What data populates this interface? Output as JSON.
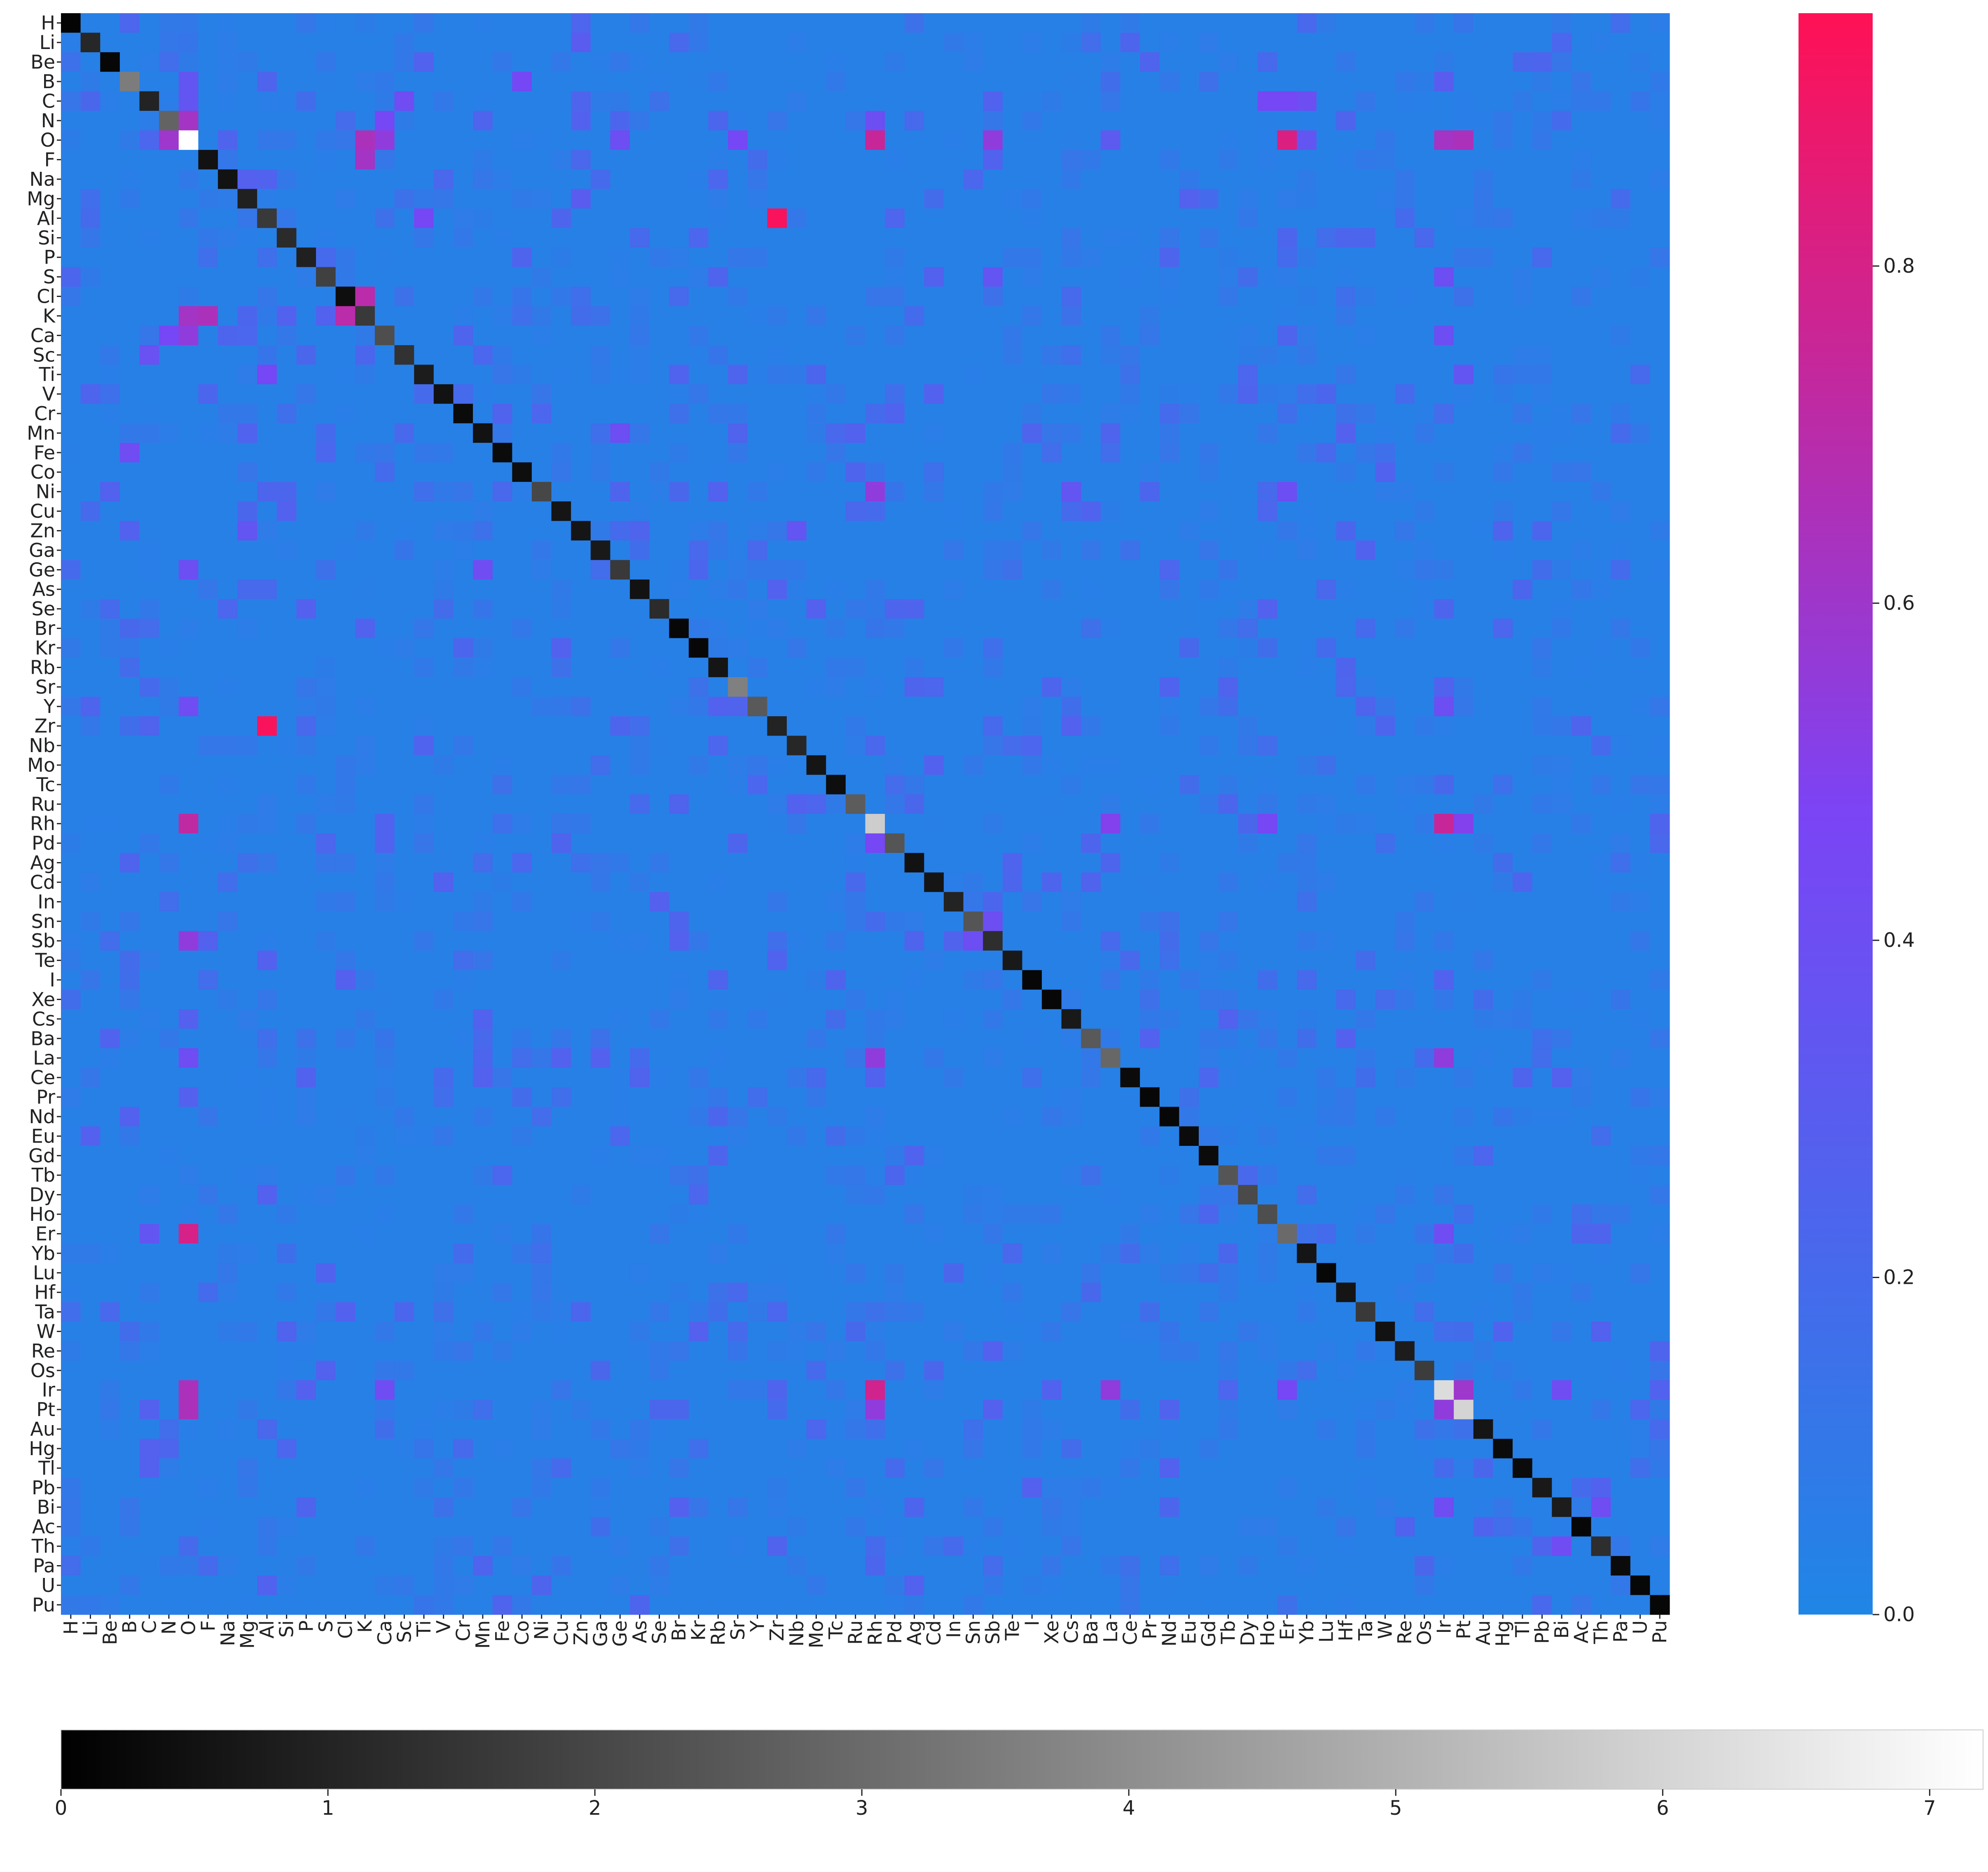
{
  "chart_data": {
    "type": "heatmap",
    "elements": [
      "H",
      "Li",
      "Be",
      "B",
      "C",
      "N",
      "O",
      "F",
      "Na",
      "Mg",
      "Al",
      "Si",
      "P",
      "S",
      "Cl",
      "K",
      "Ca",
      "Sc",
      "Ti",
      "V",
      "Cr",
      "Mn",
      "Fe",
      "Co",
      "Ni",
      "Cu",
      "Zn",
      "Ga",
      "Ge",
      "As",
      "Se",
      "Br",
      "Kr",
      "Rb",
      "Sr",
      "Y",
      "Zr",
      "Nb",
      "Mo",
      "Tc",
      "Ru",
      "Rh",
      "Pd",
      "Ag",
      "Cd",
      "In",
      "Sn",
      "Sb",
      "Te",
      "I",
      "Xe",
      "Cs",
      "Ba",
      "La",
      "Ce",
      "Pr",
      "Nd",
      "Eu",
      "Gd",
      "Tb",
      "Dy",
      "Ho",
      "Er",
      "Yb",
      "Lu",
      "Hf",
      "Ta",
      "W",
      "Re",
      "Os",
      "Ir",
      "Pt",
      "Au",
      "Hg",
      "Tl",
      "Pb",
      "Bi",
      "Ac",
      "Th",
      "Pa",
      "U",
      "Pu"
    ],
    "background_value": 0.04,
    "diagonal_value_scale": "grayscale",
    "diagonal": [
      {
        "el": "H",
        "v": 0.1
      },
      {
        "el": "Li",
        "v": 1.1
      },
      {
        "el": "Be",
        "v": 0.2
      },
      {
        "el": "B",
        "v": 3.5
      },
      {
        "el": "C",
        "v": 1.0
      },
      {
        "el": "N",
        "v": 2.8
      },
      {
        "el": "O",
        "v": 7.2
      },
      {
        "el": "F",
        "v": 0.5
      },
      {
        "el": "Na",
        "v": 0.5
      },
      {
        "el": "Mg",
        "v": 0.9
      },
      {
        "el": "Al",
        "v": 1.6
      },
      {
        "el": "Si",
        "v": 1.2
      },
      {
        "el": "P",
        "v": 0.9
      },
      {
        "el": "S",
        "v": 1.8
      },
      {
        "el": "Cl",
        "v": 0.4
      },
      {
        "el": "K",
        "v": 1.6
      },
      {
        "el": "Ca",
        "v": 2.2
      },
      {
        "el": "Sc",
        "v": 1.4
      },
      {
        "el": "Ti",
        "v": 0.8
      },
      {
        "el": "V",
        "v": 0.5
      },
      {
        "el": "Cr",
        "v": 0.3
      },
      {
        "el": "Mn",
        "v": 0.5
      },
      {
        "el": "Fe",
        "v": 0.3
      },
      {
        "el": "Co",
        "v": 0.4
      },
      {
        "el": "Ni",
        "v": 2.0
      },
      {
        "el": "Cu",
        "v": 0.6
      },
      {
        "el": "Zn",
        "v": 0.6
      },
      {
        "el": "Ga",
        "v": 0.7
      },
      {
        "el": "Ge",
        "v": 1.6
      },
      {
        "el": "As",
        "v": 0.5
      },
      {
        "el": "Se",
        "v": 1.2
      },
      {
        "el": "Br",
        "v": 0.2
      },
      {
        "el": "Kr",
        "v": 0.2
      },
      {
        "el": "Rb",
        "v": 0.6
      },
      {
        "el": "Sr",
        "v": 3.6
      },
      {
        "el": "Y",
        "v": 2.5
      },
      {
        "el": "Zr",
        "v": 1.0
      },
      {
        "el": "Nb",
        "v": 1.1
      },
      {
        "el": "Mo",
        "v": 0.6
      },
      {
        "el": "Tc",
        "v": 0.4
      },
      {
        "el": "Ru",
        "v": 2.6
      },
      {
        "el": "Rh",
        "v": 5.8
      },
      {
        "el": "Pd",
        "v": 2.4
      },
      {
        "el": "Ag",
        "v": 0.5
      },
      {
        "el": "Cd",
        "v": 0.6
      },
      {
        "el": "In",
        "v": 1.0
      },
      {
        "el": "Sn",
        "v": 2.4
      },
      {
        "el": "Sb",
        "v": 1.3
      },
      {
        "el": "Te",
        "v": 0.7
      },
      {
        "el": "I",
        "v": 0.2
      },
      {
        "el": "Xe",
        "v": 0.2
      },
      {
        "el": "Cs",
        "v": 0.7
      },
      {
        "el": "Ba",
        "v": 2.5
      },
      {
        "el": "La",
        "v": 2.9
      },
      {
        "el": "Ce",
        "v": 0.3
      },
      {
        "el": "Pr",
        "v": 0.2
      },
      {
        "el": "Nd",
        "v": 0.2
      },
      {
        "el": "Eu",
        "v": 0.3
      },
      {
        "el": "Gd",
        "v": 0.3
      },
      {
        "el": "Tb",
        "v": 2.4
      },
      {
        "el": "Dy",
        "v": 2.1
      },
      {
        "el": "Ho",
        "v": 2.2
      },
      {
        "el": "Er",
        "v": 3.0
      },
      {
        "el": "Yb",
        "v": 0.6
      },
      {
        "el": "Lu",
        "v": 0.2
      },
      {
        "el": "Hf",
        "v": 0.6
      },
      {
        "el": "Ta",
        "v": 1.6
      },
      {
        "el": "W",
        "v": 0.5
      },
      {
        "el": "Re",
        "v": 0.8
      },
      {
        "el": "Os",
        "v": 1.7
      },
      {
        "el": "Ir",
        "v": 6.2
      },
      {
        "el": "Pt",
        "v": 6.0
      },
      {
        "el": "Au",
        "v": 0.6
      },
      {
        "el": "Hg",
        "v": 0.3
      },
      {
        "el": "Tl",
        "v": 0.3
      },
      {
        "el": "Pb",
        "v": 0.7
      },
      {
        "el": "Bi",
        "v": 0.8
      },
      {
        "el": "Ac",
        "v": 0.2
      },
      {
        "el": "Th",
        "v": 1.3
      },
      {
        "el": "Pa",
        "v": 0.3
      },
      {
        "el": "U",
        "v": 0.2
      },
      {
        "el": "Pu",
        "v": 0.2
      }
    ],
    "off_diagonal": [
      {
        "row": "Li",
        "col": "Zn",
        "v": 0.3
      },
      {
        "row": "Be",
        "col": "N",
        "v": 0.18
      },
      {
        "row": "B",
        "col": "O",
        "v": 0.35
      },
      {
        "row": "B",
        "col": "Co",
        "v": 0.45
      },
      {
        "row": "B",
        "col": "Ir",
        "v": 0.3
      },
      {
        "row": "C",
        "col": "O",
        "v": 0.35
      },
      {
        "row": "C",
        "col": "Sc",
        "v": 0.42
      },
      {
        "row": "C",
        "col": "Ho",
        "v": 0.45
      },
      {
        "row": "C",
        "col": "Er",
        "v": 0.45
      },
      {
        "row": "C",
        "col": "Yb",
        "v": 0.4
      },
      {
        "row": "N",
        "col": "O",
        "v": 0.62
      },
      {
        "row": "N",
        "col": "Ca",
        "v": 0.45
      },
      {
        "row": "N",
        "col": "Rh",
        "v": 0.4
      },
      {
        "row": "O",
        "col": "N",
        "v": 0.6
      },
      {
        "row": "O",
        "col": "K",
        "v": 0.65
      },
      {
        "row": "O",
        "col": "Ca",
        "v": 0.55
      },
      {
        "row": "O",
        "col": "Ge",
        "v": 0.4
      },
      {
        "row": "O",
        "col": "Sr",
        "v": 0.45
      },
      {
        "row": "O",
        "col": "Rh",
        "v": 0.75
      },
      {
        "row": "O",
        "col": "Sb",
        "v": 0.55
      },
      {
        "row": "O",
        "col": "Er",
        "v": 0.82
      },
      {
        "row": "O",
        "col": "Ir",
        "v": 0.62
      },
      {
        "row": "O",
        "col": "Pt",
        "v": 0.65
      },
      {
        "row": "O",
        "col": "Yb",
        "v": 0.35
      },
      {
        "row": "O",
        "col": "La",
        "v": 0.32
      },
      {
        "row": "F",
        "col": "K",
        "v": 0.62
      },
      {
        "row": "Mg",
        "col": "Zn",
        "v": 0.3
      },
      {
        "row": "Al",
        "col": "Zr",
        "v": 0.93
      },
      {
        "row": "Al",
        "col": "Ti",
        "v": 0.45
      },
      {
        "row": "S",
        "col": "Sb",
        "v": 0.35
      },
      {
        "row": "S",
        "col": "Ir",
        "v": 0.4
      },
      {
        "row": "Cl",
        "col": "K",
        "v": 0.7
      },
      {
        "row": "K",
        "col": "Cl",
        "v": 0.7
      },
      {
        "row": "K",
        "col": "O",
        "v": 0.62
      },
      {
        "row": "K",
        "col": "F",
        "v": 0.65
      },
      {
        "row": "Ca",
        "col": "N",
        "v": 0.45
      },
      {
        "row": "Ca",
        "col": "O",
        "v": 0.55
      },
      {
        "row": "Ca",
        "col": "Ir",
        "v": 0.4
      },
      {
        "row": "Sc",
        "col": "C",
        "v": 0.38
      },
      {
        "row": "Ti",
        "col": "Al",
        "v": 0.45
      },
      {
        "row": "Ti",
        "col": "Pt",
        "v": 0.35
      },
      {
        "row": "Mn",
        "col": "Ge",
        "v": 0.4
      },
      {
        "row": "Fe",
        "col": "B",
        "v": 0.42
      },
      {
        "row": "Ni",
        "col": "Rh",
        "v": 0.55
      },
      {
        "row": "Ni",
        "col": "Er",
        "v": 0.4
      },
      {
        "row": "Ni",
        "col": "Cs",
        "v": 0.35
      },
      {
        "row": "Zn",
        "col": "Mg",
        "v": 0.35
      },
      {
        "row": "Zn",
        "col": "Nb",
        "v": 0.35
      },
      {
        "row": "Ge",
        "col": "O",
        "v": 0.4
      },
      {
        "row": "Ge",
        "col": "Mn",
        "v": 0.42
      },
      {
        "row": "Y",
        "col": "O",
        "v": 0.42
      },
      {
        "row": "Y",
        "col": "Ir",
        "v": 0.4
      },
      {
        "row": "Zr",
        "col": "Al",
        "v": 0.93
      },
      {
        "row": "Rh",
        "col": "O",
        "v": 0.72
      },
      {
        "row": "Rh",
        "col": "La",
        "v": 0.5
      },
      {
        "row": "Rh",
        "col": "Ho",
        "v": 0.45
      },
      {
        "row": "Rh",
        "col": "Ir",
        "v": 0.75
      },
      {
        "row": "Rh",
        "col": "Pt",
        "v": 0.5
      },
      {
        "row": "Pd",
        "col": "Rh",
        "v": 0.45
      },
      {
        "row": "Sn",
        "col": "Sb",
        "v": 0.4
      },
      {
        "row": "Sb",
        "col": "O",
        "v": 0.55
      },
      {
        "row": "Sb",
        "col": "Sn",
        "v": 0.4
      },
      {
        "row": "La",
        "col": "O",
        "v": 0.42
      },
      {
        "row": "La",
        "col": "Rh",
        "v": 0.55
      },
      {
        "row": "La",
        "col": "Ir",
        "v": 0.55
      },
      {
        "row": "Er",
        "col": "O",
        "v": 0.8
      },
      {
        "row": "Er",
        "col": "C",
        "v": 0.35
      },
      {
        "row": "Er",
        "col": "Ir",
        "v": 0.42
      },
      {
        "row": "Ir",
        "col": "O",
        "v": 0.65
      },
      {
        "row": "Ir",
        "col": "Rh",
        "v": 0.78
      },
      {
        "row": "Ir",
        "col": "Ca",
        "v": 0.42
      },
      {
        "row": "Ir",
        "col": "La",
        "v": 0.55
      },
      {
        "row": "Ir",
        "col": "Er",
        "v": 0.45
      },
      {
        "row": "Ir",
        "col": "Pt",
        "v": 0.6
      },
      {
        "row": "Ir",
        "col": "Bi",
        "v": 0.42
      },
      {
        "row": "Pt",
        "col": "O",
        "v": 0.65
      },
      {
        "row": "Pt",
        "col": "Rh",
        "v": 0.55
      },
      {
        "row": "Pt",
        "col": "Ir",
        "v": 0.55
      },
      {
        "row": "Bi",
        "col": "Ir",
        "v": 0.42
      },
      {
        "row": "Bi",
        "col": "Th",
        "v": 0.42
      },
      {
        "row": "Th",
        "col": "Bi",
        "v": 0.42
      }
    ],
    "colorbar_right": {
      "range": [
        0.0,
        0.95
      ],
      "ticks": [
        0.0,
        0.2,
        0.4,
        0.6,
        0.8
      ],
      "tick_labels": [
        "0.0",
        "0.2",
        "0.4",
        "0.6",
        "0.8"
      ],
      "colors": [
        "#1f86e5",
        "#7b44f5",
        "#ff1155"
      ]
    },
    "colorbar_bottom": {
      "range": [
        0,
        7.2
      ],
      "ticks": [
        0,
        1,
        2,
        3,
        4,
        5,
        6,
        7
      ],
      "tick_labels": [
        "0",
        "1",
        "2",
        "3",
        "4",
        "5",
        "6",
        "7"
      ],
      "colors": [
        "#000000",
        "#ffffff"
      ]
    },
    "title": "",
    "xlabel": "",
    "ylabel": ""
  }
}
